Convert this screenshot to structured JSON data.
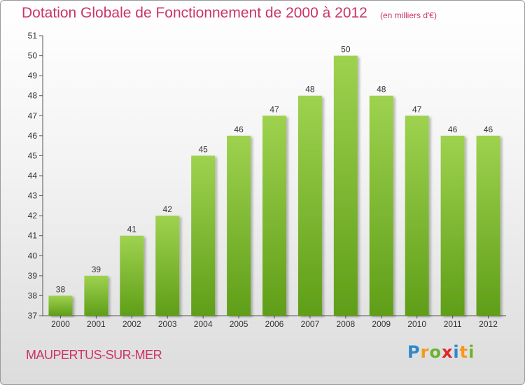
{
  "chart_data": {
    "type": "bar",
    "title": "Dotation Globale de Fonctionnement de 2000 à 2012",
    "subtitle": "(en milliers d'€)",
    "categories": [
      "2000",
      "2001",
      "2002",
      "2003",
      "2004",
      "2005",
      "2006",
      "2007",
      "2008",
      "2009",
      "2010",
      "2011",
      "2012"
    ],
    "values": [
      38,
      39,
      41,
      42,
      45,
      46,
      47,
      48,
      50,
      48,
      47,
      46,
      46
    ],
    "ylim": [
      37,
      51
    ],
    "yticks": [
      37,
      38,
      39,
      40,
      41,
      42,
      43,
      44,
      45,
      46,
      47,
      48,
      49,
      50,
      51
    ],
    "xlabel": "",
    "ylabel": "",
    "grid": false,
    "bar_color_top": "#9ed24f",
    "bar_color_bottom": "#5f9e18"
  },
  "footer": {
    "commune": "MAUPERTUS-SUR-MER",
    "logo_letters": [
      "P",
      "r",
      "o",
      "x",
      "i",
      "t",
      "i"
    ],
    "logo_colors": [
      "#2e88c9",
      "#f39a1d",
      "#6ab32e",
      "#e0262a"
    ]
  }
}
